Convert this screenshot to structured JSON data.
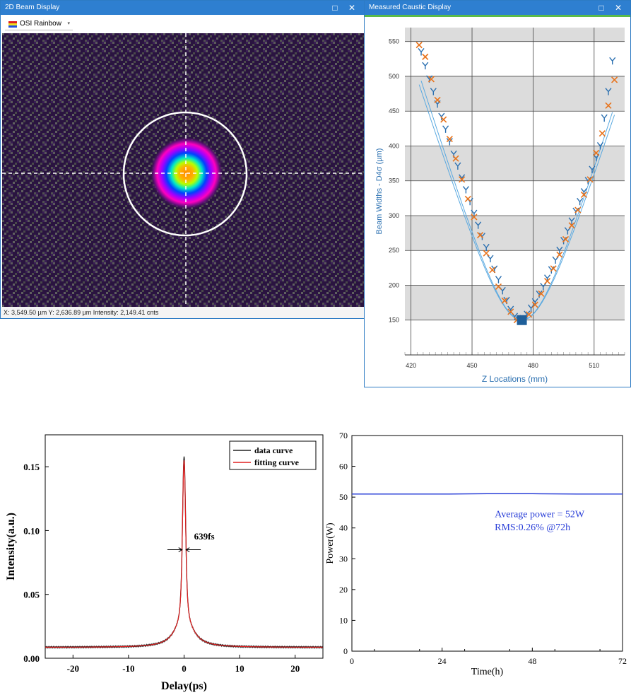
{
  "beam_window": {
    "title": "2D Beam Display",
    "controls": "□ ✕",
    "colormap": "OSI Rainbow",
    "caret": "▾",
    "status": "X: 3,549.50 µm  Y: 2,636.89 µm  Intensity: 2,149.41 cnts"
  },
  "caustic_window": {
    "title": "Measured Caustic Display",
    "controls": "□ ✕"
  },
  "chart_data": [
    {
      "type": "scatter",
      "xlabel": "Z Locations (mm)",
      "ylabel": "Beam Widths - D4σ (µm)",
      "xlim": [
        417,
        525
      ],
      "ylim": [
        100,
        570
      ],
      "xticks": [
        420,
        450,
        480,
        510
      ],
      "yticks": [
        150,
        200,
        250,
        300,
        350,
        400,
        450,
        500,
        550
      ],
      "colors": {
        "series_x": "#2a6fb0",
        "series_y": "#e8731c",
        "fit": "#5aa9e0"
      },
      "series": [
        {
          "marker": "Y",
          "x": [
            425,
            427,
            429,
            431,
            433,
            435,
            437,
            439,
            441,
            443,
            445,
            447,
            449,
            451,
            453,
            455,
            457,
            459,
            461,
            463,
            465,
            467,
            469,
            471,
            473,
            475,
            477,
            479,
            481,
            483,
            485,
            487,
            489,
            491,
            493,
            495,
            497,
            499,
            501,
            503,
            505,
            507,
            509,
            511,
            513,
            515,
            517,
            519
          ],
          "y": [
            535,
            515,
            496,
            478,
            460,
            442,
            424,
            406,
            388,
            371,
            354,
            337,
            320,
            303,
            286,
            270,
            254,
            238,
            223,
            208,
            192,
            178,
            165,
            155,
            150,
            152,
            158,
            167,
            176,
            187,
            198,
            210,
            222,
            236,
            250,
            264,
            278,
            292,
            306,
            320,
            334,
            350,
            366,
            383,
            400,
            440,
            478,
            522
          ]
        },
        {
          "marker": "X",
          "x": [
            424,
            427,
            430,
            433,
            436,
            439,
            442,
            445,
            448,
            451,
            454,
            457,
            460,
            463,
            466,
            469,
            472,
            475,
            478,
            481,
            484,
            487,
            490,
            493,
            496,
            499,
            502,
            505,
            508,
            511,
            514,
            517,
            520
          ],
          "y": [
            545,
            528,
            496,
            466,
            438,
            410,
            382,
            352,
            324,
            298,
            272,
            246,
            222,
            198,
            178,
            162,
            150,
            150,
            158,
            172,
            188,
            206,
            224,
            244,
            266,
            286,
            308,
            330,
            352,
            390,
            418,
            458,
            495
          ]
        }
      ],
      "fits": [
        {
          "x_min": 425,
          "x_max": 519,
          "x0": 474.5,
          "y0": 150,
          "slope": 9.5
        },
        {
          "x_min": 424,
          "x_max": 520,
          "x0": 474.5,
          "y0": 150,
          "slope": 9.2
        }
      ]
    },
    {
      "type": "line",
      "xlabel": "Delay(ps)",
      "ylabel": "Intensity(a.u.)",
      "xlim": [
        -25,
        25
      ],
      "ylim": [
        0,
        0.175
      ],
      "xticks": [
        -20,
        -10,
        0,
        10,
        20
      ],
      "yticks": [
        0.0,
        0.05,
        0.1,
        0.15
      ],
      "ytick_labels": [
        "0.00",
        "0.05",
        "0.10",
        "0.15"
      ],
      "annotation": "639fs",
      "series": [
        {
          "name": "data curve",
          "color": "#222222",
          "baseline": 0.0085,
          "peak": 0.158,
          "center": 0,
          "fwhm_ps": 0.639
        },
        {
          "name": "fitting curve",
          "color": "#e02020",
          "baseline": 0.0085,
          "peak": 0.155,
          "center": 0,
          "fwhm_ps": 0.639
        }
      ]
    },
    {
      "type": "line",
      "xlabel": "Time(h)",
      "ylabel": "Power(W)",
      "xlim": [
        0,
        72
      ],
      "ylim": [
        0,
        70
      ],
      "xticks": [
        0,
        24,
        48,
        72
      ],
      "yticks": [
        0,
        10,
        20,
        30,
        40,
        50,
        60,
        70
      ],
      "annotation_line1": "Average power = 52W",
      "annotation_line2": "RMS:0.26% @72h",
      "series": [
        {
          "color": "#2a3fd8",
          "x": [
            0,
            12,
            24,
            36,
            48,
            60,
            72
          ],
          "y": [
            51.0,
            51.0,
            51.0,
            51.1,
            51.1,
            51.0,
            51.0
          ]
        }
      ]
    }
  ]
}
